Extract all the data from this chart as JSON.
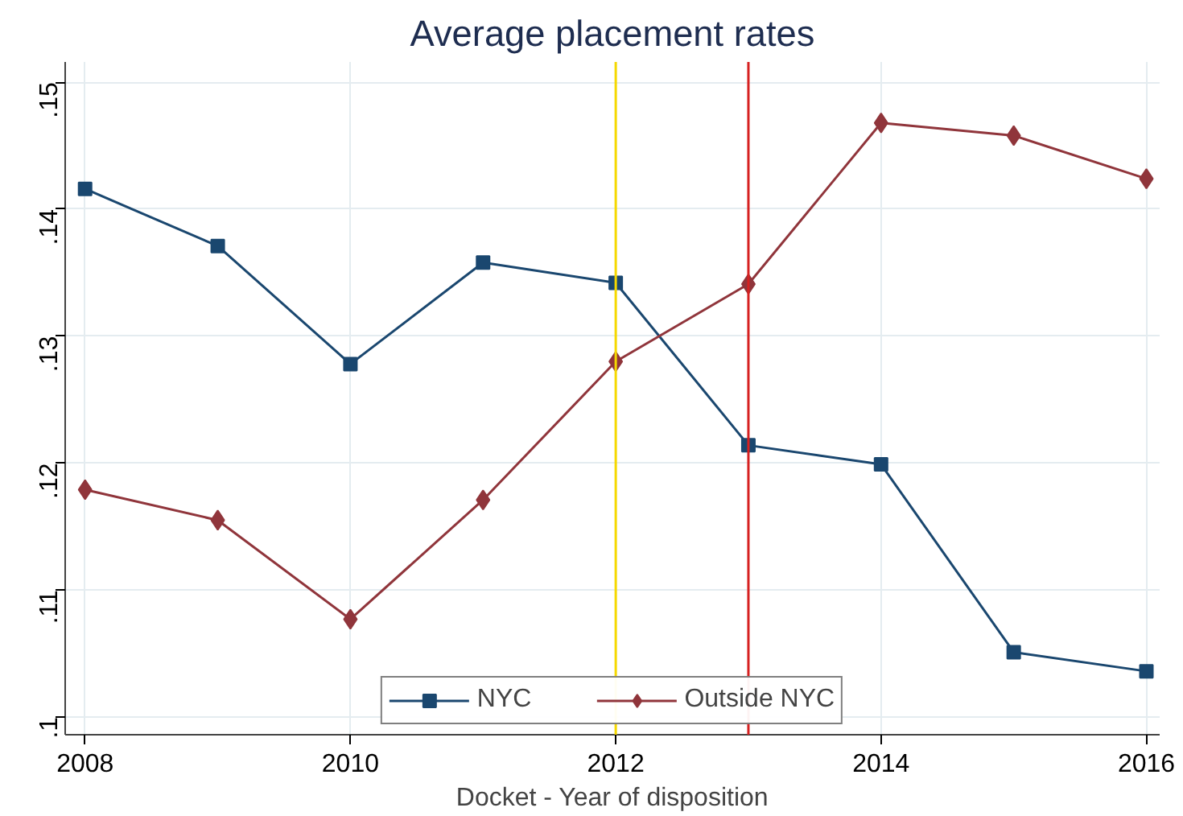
{
  "chart_data": {
    "type": "line",
    "title": "Average placement rates",
    "xlabel": "Docket - Year of disposition",
    "x": [
      2008,
      2009,
      2010,
      2011,
      2012,
      2013,
      2014,
      2015,
      2016
    ],
    "series": [
      {
        "name": "NYC",
        "color": "#1a476f",
        "marker": "square",
        "values": [
          0.1416,
          0.1371,
          0.1278,
          0.1358,
          0.1342,
          0.1214,
          0.1199,
          0.1051,
          0.1036
        ]
      },
      {
        "name": "Outside NYC",
        "color": "#90353b",
        "marker": "diamond",
        "values": [
          0.1179,
          0.1155,
          0.1077,
          0.1171,
          0.128,
          0.1341,
          0.1468,
          0.1458,
          0.1424
        ]
      }
    ],
    "xlim": [
      2007.85,
      2016.1
    ],
    "ylim": [
      0.0986,
      0.1516
    ],
    "xticks": [
      2008,
      2010,
      2012,
      2014,
      2016
    ],
    "yticks": [
      {
        "value": 0.1,
        "label": ".1"
      },
      {
        "value": 0.11,
        "label": ".11"
      },
      {
        "value": 0.12,
        "label": ".12"
      },
      {
        "value": 0.13,
        "label": ".13"
      },
      {
        "value": 0.14,
        "label": ".14"
      },
      {
        "value": 0.15,
        "label": ".15"
      }
    ],
    "ref_lines": [
      {
        "axis": "x",
        "value": 2012,
        "color": "#f5d800"
      },
      {
        "axis": "x",
        "value": 2013,
        "color": "#d62020"
      }
    ],
    "grid": true,
    "legend": "bottom",
    "line_style": "solid"
  }
}
